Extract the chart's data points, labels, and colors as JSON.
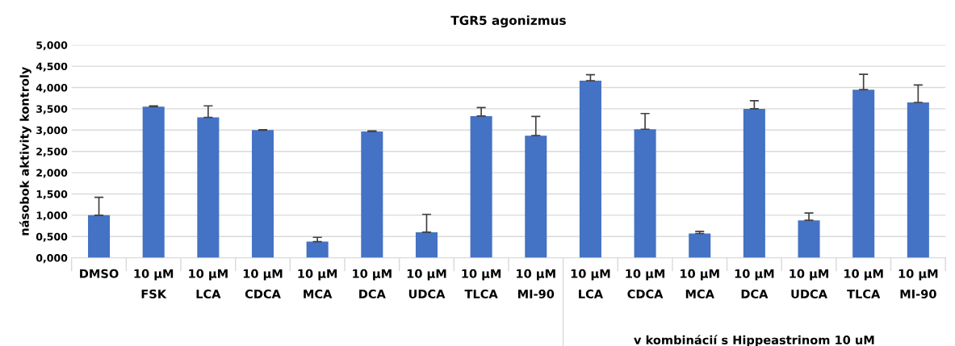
{
  "chart_data": {
    "type": "bar",
    "title": "TGR5 agonizmus",
    "ylabel": "násobok aktivity kontroly",
    "categories": [
      "DMSO",
      "10 µM\nFSK",
      "10 µM\nLCA",
      "10 µM\nCDCA",
      "10 µM\nMCA",
      "10 µM\nDCA",
      "10 µM\nUDCA",
      "10 µM\nTLCA",
      "10 µM\nMI-90",
      "10 µM\nLCA",
      "10 µM\nCDCA",
      "10 µM\nMCA",
      "10 µM\nDCA",
      "10 µM\nUDCA",
      "10 µM\nTLCA",
      "10 µM\nMI-90"
    ],
    "values": [
      1.0,
      3.55,
      3.3,
      3.0,
      0.38,
      2.97,
      0.6,
      3.33,
      2.87,
      4.16,
      3.02,
      0.57,
      3.5,
      0.88,
      3.95,
      3.65
    ],
    "errors": [
      [
        1.0,
        1.42
      ],
      [
        3.55,
        3.57
      ],
      [
        3.3,
        3.57
      ],
      [
        3.0,
        3.01
      ],
      [
        0.38,
        0.48
      ],
      [
        2.97,
        2.98
      ],
      [
        0.6,
        1.02
      ],
      [
        3.33,
        3.53
      ],
      [
        2.87,
        3.32
      ],
      [
        4.16,
        4.3
      ],
      [
        3.02,
        3.39
      ],
      [
        0.57,
        0.62
      ],
      [
        3.5,
        3.69
      ],
      [
        0.88,
        1.05
      ],
      [
        3.95,
        4.31
      ],
      [
        3.65,
        4.06
      ]
    ],
    "color": "#4472c4",
    "ylim": [
      0,
      5
    ],
    "yticks": [
      {
        "value": 0,
        "label": "0,000"
      },
      {
        "value": 0.5,
        "label": "0,500"
      },
      {
        "value": 1,
        "label": "1,000"
      },
      {
        "value": 1.5,
        "label": "1,500"
      },
      {
        "value": 2,
        "label": "2,000"
      },
      {
        "value": 2.5,
        "label": "2,500"
      },
      {
        "value": 3,
        "label": "3,000"
      },
      {
        "value": 3.5,
        "label": "3,500"
      },
      {
        "value": 4,
        "label": "4,000"
      },
      {
        "value": 4.5,
        "label": "4,500"
      },
      {
        "value": 5,
        "label": "5,000"
      }
    ],
    "grid": "y",
    "annotations": [
      "v kombinácií s Hippeastrinom 10 uM"
    ]
  }
}
